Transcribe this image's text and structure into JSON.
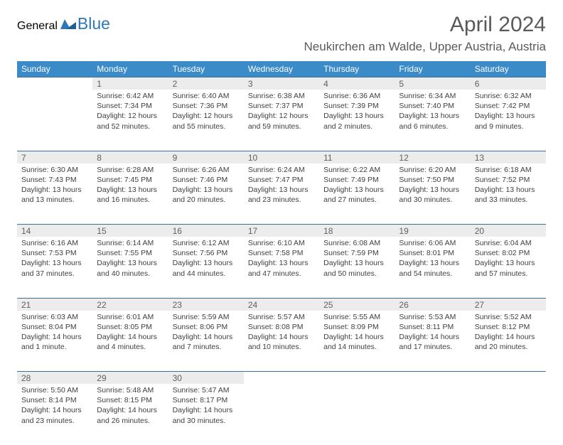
{
  "logo": {
    "general": "General",
    "blue": "Blue"
  },
  "title": "April 2024",
  "location": "Neukirchen am Walde, Upper Austria, Austria",
  "colors": {
    "header_bg": "#3b8bc9",
    "header_text": "#ffffff",
    "daynum_bg": "#ececec",
    "row_border": "#3b6f9c",
    "body_text": "#3f3f3f",
    "title_text": "#5a5a5a",
    "logo_gray": "#6a6a6a",
    "logo_blue": "#2f78b7"
  },
  "weekdays": [
    "Sunday",
    "Monday",
    "Tuesday",
    "Wednesday",
    "Thursday",
    "Friday",
    "Saturday"
  ],
  "weeks": [
    [
      null,
      {
        "n": "1",
        "sr": "Sunrise: 6:42 AM",
        "ss": "Sunset: 7:34 PM",
        "d1": "Daylight: 12 hours",
        "d2": "and 52 minutes."
      },
      {
        "n": "2",
        "sr": "Sunrise: 6:40 AM",
        "ss": "Sunset: 7:36 PM",
        "d1": "Daylight: 12 hours",
        "d2": "and 55 minutes."
      },
      {
        "n": "3",
        "sr": "Sunrise: 6:38 AM",
        "ss": "Sunset: 7:37 PM",
        "d1": "Daylight: 12 hours",
        "d2": "and 59 minutes."
      },
      {
        "n": "4",
        "sr": "Sunrise: 6:36 AM",
        "ss": "Sunset: 7:39 PM",
        "d1": "Daylight: 13 hours",
        "d2": "and 2 minutes."
      },
      {
        "n": "5",
        "sr": "Sunrise: 6:34 AM",
        "ss": "Sunset: 7:40 PM",
        "d1": "Daylight: 13 hours",
        "d2": "and 6 minutes."
      },
      {
        "n": "6",
        "sr": "Sunrise: 6:32 AM",
        "ss": "Sunset: 7:42 PM",
        "d1": "Daylight: 13 hours",
        "d2": "and 9 minutes."
      }
    ],
    [
      {
        "n": "7",
        "sr": "Sunrise: 6:30 AM",
        "ss": "Sunset: 7:43 PM",
        "d1": "Daylight: 13 hours",
        "d2": "and 13 minutes."
      },
      {
        "n": "8",
        "sr": "Sunrise: 6:28 AM",
        "ss": "Sunset: 7:45 PM",
        "d1": "Daylight: 13 hours",
        "d2": "and 16 minutes."
      },
      {
        "n": "9",
        "sr": "Sunrise: 6:26 AM",
        "ss": "Sunset: 7:46 PM",
        "d1": "Daylight: 13 hours",
        "d2": "and 20 minutes."
      },
      {
        "n": "10",
        "sr": "Sunrise: 6:24 AM",
        "ss": "Sunset: 7:47 PM",
        "d1": "Daylight: 13 hours",
        "d2": "and 23 minutes."
      },
      {
        "n": "11",
        "sr": "Sunrise: 6:22 AM",
        "ss": "Sunset: 7:49 PM",
        "d1": "Daylight: 13 hours",
        "d2": "and 27 minutes."
      },
      {
        "n": "12",
        "sr": "Sunrise: 6:20 AM",
        "ss": "Sunset: 7:50 PM",
        "d1": "Daylight: 13 hours",
        "d2": "and 30 minutes."
      },
      {
        "n": "13",
        "sr": "Sunrise: 6:18 AM",
        "ss": "Sunset: 7:52 PM",
        "d1": "Daylight: 13 hours",
        "d2": "and 33 minutes."
      }
    ],
    [
      {
        "n": "14",
        "sr": "Sunrise: 6:16 AM",
        "ss": "Sunset: 7:53 PM",
        "d1": "Daylight: 13 hours",
        "d2": "and 37 minutes."
      },
      {
        "n": "15",
        "sr": "Sunrise: 6:14 AM",
        "ss": "Sunset: 7:55 PM",
        "d1": "Daylight: 13 hours",
        "d2": "and 40 minutes."
      },
      {
        "n": "16",
        "sr": "Sunrise: 6:12 AM",
        "ss": "Sunset: 7:56 PM",
        "d1": "Daylight: 13 hours",
        "d2": "and 44 minutes."
      },
      {
        "n": "17",
        "sr": "Sunrise: 6:10 AM",
        "ss": "Sunset: 7:58 PM",
        "d1": "Daylight: 13 hours",
        "d2": "and 47 minutes."
      },
      {
        "n": "18",
        "sr": "Sunrise: 6:08 AM",
        "ss": "Sunset: 7:59 PM",
        "d1": "Daylight: 13 hours",
        "d2": "and 50 minutes."
      },
      {
        "n": "19",
        "sr": "Sunrise: 6:06 AM",
        "ss": "Sunset: 8:01 PM",
        "d1": "Daylight: 13 hours",
        "d2": "and 54 minutes."
      },
      {
        "n": "20",
        "sr": "Sunrise: 6:04 AM",
        "ss": "Sunset: 8:02 PM",
        "d1": "Daylight: 13 hours",
        "d2": "and 57 minutes."
      }
    ],
    [
      {
        "n": "21",
        "sr": "Sunrise: 6:03 AM",
        "ss": "Sunset: 8:04 PM",
        "d1": "Daylight: 14 hours",
        "d2": "and 1 minute."
      },
      {
        "n": "22",
        "sr": "Sunrise: 6:01 AM",
        "ss": "Sunset: 8:05 PM",
        "d1": "Daylight: 14 hours",
        "d2": "and 4 minutes."
      },
      {
        "n": "23",
        "sr": "Sunrise: 5:59 AM",
        "ss": "Sunset: 8:06 PM",
        "d1": "Daylight: 14 hours",
        "d2": "and 7 minutes."
      },
      {
        "n": "24",
        "sr": "Sunrise: 5:57 AM",
        "ss": "Sunset: 8:08 PM",
        "d1": "Daylight: 14 hours",
        "d2": "and 10 minutes."
      },
      {
        "n": "25",
        "sr": "Sunrise: 5:55 AM",
        "ss": "Sunset: 8:09 PM",
        "d1": "Daylight: 14 hours",
        "d2": "and 14 minutes."
      },
      {
        "n": "26",
        "sr": "Sunrise: 5:53 AM",
        "ss": "Sunset: 8:11 PM",
        "d1": "Daylight: 14 hours",
        "d2": "and 17 minutes."
      },
      {
        "n": "27",
        "sr": "Sunrise: 5:52 AM",
        "ss": "Sunset: 8:12 PM",
        "d1": "Daylight: 14 hours",
        "d2": "and 20 minutes."
      }
    ],
    [
      {
        "n": "28",
        "sr": "Sunrise: 5:50 AM",
        "ss": "Sunset: 8:14 PM",
        "d1": "Daylight: 14 hours",
        "d2": "and 23 minutes."
      },
      {
        "n": "29",
        "sr": "Sunrise: 5:48 AM",
        "ss": "Sunset: 8:15 PM",
        "d1": "Daylight: 14 hours",
        "d2": "and 26 minutes."
      },
      {
        "n": "30",
        "sr": "Sunrise: 5:47 AM",
        "ss": "Sunset: 8:17 PM",
        "d1": "Daylight: 14 hours",
        "d2": "and 30 minutes."
      },
      null,
      null,
      null,
      null
    ]
  ]
}
